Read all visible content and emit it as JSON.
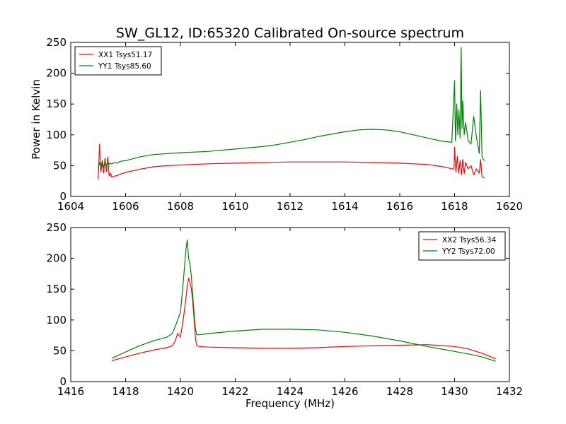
{
  "figure": {
    "title": "SW_GL12, ID:65320 Calibrated On-source spectrum"
  },
  "chart_data": [
    {
      "type": "line",
      "title": "SW_GL12, ID:65320 Calibrated On-source spectrum",
      "xlabel": "",
      "ylabel": "Power in Kelvin",
      "xlim": [
        1604,
        1620
      ],
      "ylim": [
        0,
        250
      ],
      "xticks": [
        1604,
        1606,
        1608,
        1610,
        1612,
        1614,
        1616,
        1618,
        1620
      ],
      "yticks": [
        0,
        50,
        100,
        150,
        200,
        250
      ],
      "legend_position": "top-left",
      "series": [
        {
          "name": "XX1 Tsys51.17",
          "color": "#ff0000",
          "x": [
            1605.0,
            1605.05,
            1605.1,
            1605.15,
            1605.2,
            1605.25,
            1605.3,
            1605.35,
            1605.4,
            1605.45,
            1605.5,
            1605.6,
            1605.7,
            1605.8,
            1606.0,
            1606.5,
            1607.0,
            1607.5,
            1608.0,
            1609.0,
            1610.0,
            1611.0,
            1612.0,
            1613.0,
            1614.0,
            1615.0,
            1616.0,
            1616.5,
            1617.0,
            1617.3,
            1617.6,
            1617.9,
            1617.98,
            1618.0,
            1618.05,
            1618.1,
            1618.15,
            1618.2,
            1618.25,
            1618.3,
            1618.35,
            1618.4,
            1618.5,
            1618.6,
            1618.7,
            1618.8,
            1618.9,
            1618.95,
            1619.0,
            1619.05,
            1619.1
          ],
          "y": [
            28,
            85,
            40,
            55,
            38,
            62,
            40,
            64,
            33,
            38,
            31,
            33,
            34,
            36,
            39,
            44,
            48,
            50,
            51,
            53,
            54,
            55,
            56,
            56,
            56,
            55,
            54,
            53,
            52,
            50,
            48,
            45,
            44,
            80,
            40,
            65,
            38,
            58,
            35,
            60,
            37,
            55,
            45,
            50,
            35,
            45,
            38,
            60,
            32,
            31,
            30
          ]
        },
        {
          "name": "YY1 Tsys85.60",
          "color": "#008000",
          "x": [
            1605.0,
            1605.05,
            1605.1,
            1605.15,
            1605.2,
            1605.25,
            1605.3,
            1605.35,
            1605.4,
            1605.45,
            1605.5,
            1605.6,
            1605.7,
            1605.8,
            1606.0,
            1606.5,
            1607.0,
            1608.0,
            1609.0,
            1610.0,
            1611.0,
            1611.5,
            1612.0,
            1612.5,
            1613.0,
            1613.5,
            1614.0,
            1614.5,
            1615.0,
            1615.5,
            1616.0,
            1616.5,
            1617.0,
            1617.5,
            1617.9,
            1618.0,
            1618.03,
            1618.08,
            1618.12,
            1618.16,
            1618.2,
            1618.24,
            1618.27,
            1618.3,
            1618.35,
            1618.4,
            1618.5,
            1618.6,
            1618.7,
            1618.8,
            1618.9,
            1618.95,
            1619.0,
            1619.05,
            1619.1
          ],
          "y": [
            45,
            55,
            48,
            58,
            47,
            56,
            50,
            58,
            52,
            54,
            53,
            55,
            54,
            57,
            58,
            64,
            68,
            71,
            73,
            77,
            81,
            84,
            88,
            92,
            97,
            101,
            105,
            108,
            109,
            108,
            105,
            100,
            95,
            90,
            88,
            188,
            90,
            150,
            100,
            140,
            95,
            242,
            110,
            155,
            100,
            120,
            90,
            85,
            130,
            95,
            70,
            172,
            65,
            60,
            58
          ]
        }
      ]
    },
    {
      "type": "line",
      "title": "",
      "xlabel": "Frequency (MHz)",
      "ylabel": "",
      "xlim": [
        1416,
        1432
      ],
      "ylim": [
        0,
        250
      ],
      "xticks": [
        1416,
        1418,
        1420,
        1422,
        1424,
        1426,
        1428,
        1430,
        1432
      ],
      "yticks": [
        0,
        50,
        100,
        150,
        200,
        250
      ],
      "legend_position": "top-right",
      "series": [
        {
          "name": "XX2 Tsys56.34",
          "color": "#ff0000",
          "x": [
            1417.5,
            1418.0,
            1418.5,
            1419.0,
            1419.5,
            1419.7,
            1419.8,
            1419.9,
            1420.0,
            1420.1,
            1420.2,
            1420.25,
            1420.3,
            1420.35,
            1420.4,
            1420.45,
            1420.5,
            1420.55,
            1420.6,
            1420.7,
            1421.0,
            1422.0,
            1423.0,
            1424.0,
            1425.0,
            1426.0,
            1427.0,
            1428.0,
            1429.0,
            1430.0,
            1430.5,
            1431.0,
            1431.5
          ],
          "y": [
            34,
            40,
            46,
            51,
            55,
            58,
            65,
            78,
            72,
            100,
            135,
            155,
            168,
            160,
            150,
            130,
            100,
            70,
            58,
            57,
            56,
            55,
            54,
            54,
            55,
            57,
            58,
            59,
            60,
            57,
            53,
            46,
            37
          ]
        },
        {
          "name": "YY2 Tsys72.00",
          "color": "#008000",
          "x": [
            1417.5,
            1418.0,
            1418.5,
            1419.0,
            1419.5,
            1419.7,
            1419.8,
            1419.9,
            1420.0,
            1420.1,
            1420.2,
            1420.25,
            1420.3,
            1420.35,
            1420.4,
            1420.45,
            1420.5,
            1420.55,
            1420.6,
            1420.7,
            1421.0,
            1422.0,
            1423.0,
            1424.0,
            1425.0,
            1426.0,
            1427.0,
            1428.0,
            1429.0,
            1430.0,
            1430.5,
            1431.0,
            1431.5
          ],
          "y": [
            38,
            48,
            58,
            66,
            72,
            78,
            88,
            100,
            112,
            160,
            215,
            230,
            200,
            190,
            170,
            140,
            110,
            85,
            76,
            76,
            78,
            82,
            85,
            85,
            84,
            80,
            74,
            66,
            57,
            49,
            45,
            40,
            33
          ]
        }
      ]
    }
  ]
}
